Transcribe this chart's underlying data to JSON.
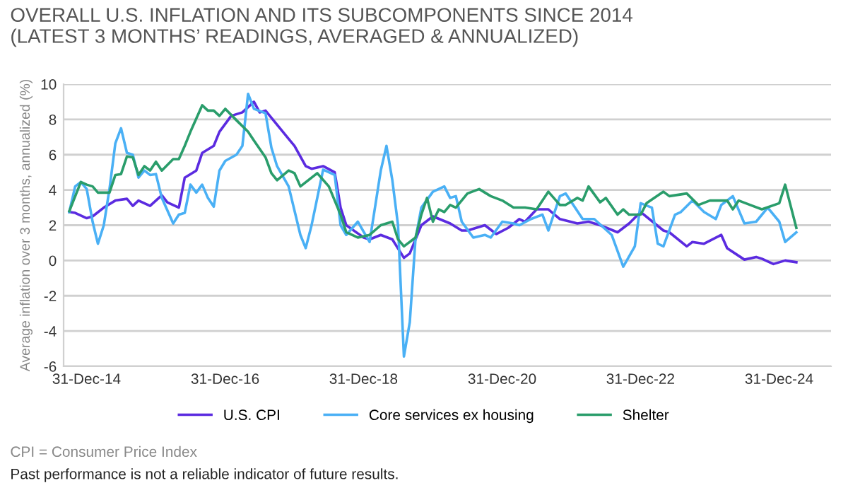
{
  "chart_data": {
    "type": "line",
    "title": "OVERALL U.S. INFLATION AND ITS SUBCOMPONENTS SINCE 2014\n(LATEST 3 MONTHS’ READINGS, AVERAGED & ANNUALIZED)",
    "ylabel": "Average inflation over 3 months, annualized (%)",
    "xlim": [
      "2014-09-01",
      "2025-10-01"
    ],
    "xticks": [
      {
        "value": "2014-12-31",
        "label": "31-Dec-14"
      },
      {
        "value": "2016-12-31",
        "label": "31-Dec-16"
      },
      {
        "value": "2018-12-31",
        "label": "31-Dec-18"
      },
      {
        "value": "2020-12-31",
        "label": "31-Dec-20"
      },
      {
        "value": "2022-12-31",
        "label": "31-Dec-22"
      },
      {
        "value": "2024-12-31",
        "label": "31-Dec-24"
      }
    ],
    "ylim": [
      -6,
      10
    ],
    "yticks": [
      -6,
      -4,
      -2,
      0,
      2,
      4,
      6,
      8,
      10
    ],
    "grid": "y",
    "legend": "bottom",
    "marker": "none",
    "line_style": "solid",
    "series": [
      {
        "name": "U.S. CPI",
        "color": "#5b2be0",
        "x": [
          "2014-10",
          "2014-11",
          "2015-01",
          "2015-02",
          "2015-04",
          "2015-06",
          "2015-08",
          "2015-09",
          "2015-10",
          "2015-12",
          "2016-02",
          "2016-03",
          "2016-05",
          "2016-06",
          "2016-08",
          "2016-09",
          "2016-11",
          "2016-12",
          "2017-02",
          "2017-04",
          "2017-06",
          "2017-07",
          "2017-08",
          "2017-10",
          "2017-12",
          "2018-01",
          "2018-03",
          "2018-04",
          "2018-06",
          "2018-08",
          "2018-09",
          "2018-10",
          "2019-01",
          "2019-02",
          "2019-04",
          "2019-06",
          "2019-08",
          "2019-09",
          "2019-11",
          "2020-01",
          "2020-04",
          "2020-06",
          "2020-07",
          "2020-10",
          "2020-12",
          "2021-02",
          "2021-04",
          "2021-05",
          "2021-07",
          "2021-09",
          "2021-11",
          "2022-02",
          "2022-04",
          "2022-06",
          "2022-09",
          "2022-11",
          "2023-01",
          "2023-05",
          "2023-06",
          "2023-09",
          "2023-10",
          "2023-12",
          "2024-03",
          "2024-04",
          "2024-07",
          "2024-09",
          "2024-10",
          "2024-12",
          "2025-02",
          "2025-04"
        ],
        "values": [
          2.75,
          2.7,
          2.4,
          2.5,
          3.0,
          3.4,
          3.5,
          3.1,
          3.4,
          3.1,
          3.7,
          3.3,
          3.0,
          4.7,
          5.1,
          6.1,
          6.5,
          7.3,
          8.2,
          8.4,
          9.0,
          8.4,
          8.5,
          7.7,
          6.9,
          6.5,
          5.35,
          5.2,
          5.35,
          5.0,
          3.0,
          2.0,
          1.3,
          1.2,
          1.45,
          1.2,
          0.15,
          0.4,
          2.0,
          2.5,
          2.1,
          1.7,
          1.7,
          2.0,
          1.5,
          1.85,
          2.35,
          2.2,
          2.9,
          2.9,
          2.35,
          2.1,
          2.2,
          2.0,
          1.6,
          2.1,
          2.75,
          1.7,
          1.6,
          0.8,
          1.05,
          0.95,
          1.45,
          0.7,
          0.05,
          0.2,
          0.1,
          -0.2,
          0.0,
          -0.1
        ]
      },
      {
        "name": "Core services ex housing",
        "color": "#4ab0f5",
        "x": [
          "2014-10",
          "2014-11",
          "2014-12",
          "2015-01",
          "2015-02",
          "2015-03",
          "2015-04",
          "2015-05",
          "2015-06",
          "2015-07",
          "2015-08",
          "2015-09",
          "2015-10",
          "2015-11",
          "2015-12",
          "2016-01",
          "2016-02",
          "2016-04",
          "2016-05",
          "2016-06",
          "2016-07",
          "2016-08",
          "2016-09",
          "2016-10",
          "2016-11",
          "2016-12",
          "2017-01",
          "2017-03",
          "2017-04",
          "2017-05",
          "2017-06",
          "2017-08",
          "2017-09",
          "2017-10",
          "2017-12",
          "2018-02",
          "2018-03",
          "2018-04",
          "2018-05",
          "2018-06",
          "2018-08",
          "2018-09",
          "2018-10",
          "2018-12",
          "2019-02",
          "2019-04",
          "2019-05",
          "2019-06",
          "2019-07",
          "2019-08",
          "2019-09",
          "2019-10",
          "2019-11",
          "2020-01",
          "2020-03",
          "2020-04",
          "2020-05",
          "2020-06",
          "2020-08",
          "2020-10",
          "2020-11",
          "2021-01",
          "2021-03",
          "2021-04",
          "2021-06",
          "2021-08",
          "2021-09",
          "2021-11",
          "2021-12",
          "2022-03",
          "2022-05",
          "2022-08",
          "2022-10",
          "2022-12",
          "2023-01",
          "2023-03",
          "2023-04",
          "2023-05",
          "2023-07",
          "2023-08",
          "2023-10",
          "2023-12",
          "2024-02",
          "2024-03",
          "2024-05",
          "2024-07",
          "2024-09",
          "2024-11",
          "2025-01",
          "2025-02",
          "2025-04"
        ],
        "values": [
          2.75,
          4.2,
          4.45,
          4.05,
          2.2,
          0.95,
          2.0,
          4.05,
          6.65,
          7.5,
          6.1,
          6.0,
          4.7,
          5.1,
          4.85,
          4.9,
          3.55,
          2.1,
          2.6,
          2.7,
          4.3,
          3.85,
          4.3,
          3.55,
          3.05,
          5.1,
          5.65,
          6.0,
          6.5,
          9.45,
          8.6,
          8.35,
          6.4,
          5.35,
          4.2,
          1.45,
          0.7,
          2.0,
          3.55,
          5.15,
          4.85,
          2.0,
          1.45,
          2.2,
          1.05,
          5.1,
          6.5,
          4.55,
          2.0,
          -5.45,
          -3.5,
          1.2,
          3.0,
          3.9,
          4.2,
          3.55,
          3.65,
          2.2,
          1.3,
          1.45,
          1.3,
          2.2,
          2.1,
          2.0,
          2.35,
          2.6,
          1.7,
          3.65,
          3.8,
          2.35,
          2.35,
          1.45,
          -0.35,
          0.8,
          3.25,
          3.0,
          0.95,
          0.8,
          2.6,
          2.75,
          3.4,
          2.75,
          2.35,
          3.15,
          3.65,
          2.1,
          2.2,
          3.0,
          2.2,
          1.05,
          1.6
        ]
      },
      {
        "name": "Shelter",
        "color": "#2a9d6b",
        "x": [
          "2014-10",
          "2014-12",
          "2015-01",
          "2015-02",
          "2015-03",
          "2015-05",
          "2015-06",
          "2015-07",
          "2015-08",
          "2015-09",
          "2015-10",
          "2015-11",
          "2015-12",
          "2016-01",
          "2016-02",
          "2016-04",
          "2016-05",
          "2016-06",
          "2016-07",
          "2016-09",
          "2016-10",
          "2016-11",
          "2016-12",
          "2017-01",
          "2017-03",
          "2017-05",
          "2017-06",
          "2017-08",
          "2017-09",
          "2017-10",
          "2017-12",
          "2018-01",
          "2018-02",
          "2018-05",
          "2018-07",
          "2018-09",
          "2018-10",
          "2018-12",
          "2019-02",
          "2019-04",
          "2019-06",
          "2019-07",
          "2019-08",
          "2019-10",
          "2019-11",
          "2019-12",
          "2020-01",
          "2020-02",
          "2020-03",
          "2020-04",
          "2020-05",
          "2020-07",
          "2020-09",
          "2020-11",
          "2021-01",
          "2021-03",
          "2021-05",
          "2021-07",
          "2021-09",
          "2021-11",
          "2021-12",
          "2022-02",
          "2022-03",
          "2022-04",
          "2022-06",
          "2022-07",
          "2022-09",
          "2022-10",
          "2022-11",
          "2023-01",
          "2023-02",
          "2023-05",
          "2023-06",
          "2023-09",
          "2023-11",
          "2024-01",
          "2024-04",
          "2024-05",
          "2024-06",
          "2024-08",
          "2024-10",
          "2025-01",
          "2025-02",
          "2025-04"
        ],
        "values": [
          2.8,
          4.45,
          4.3,
          4.2,
          3.85,
          3.85,
          4.85,
          4.9,
          5.9,
          5.85,
          4.85,
          5.35,
          5.1,
          5.6,
          5.1,
          5.75,
          5.75,
          6.5,
          7.3,
          8.8,
          8.5,
          8.5,
          8.2,
          8.6,
          7.95,
          7.3,
          6.8,
          5.85,
          4.95,
          4.55,
          5.1,
          4.95,
          4.2,
          4.95,
          4.2,
          2.6,
          1.6,
          1.3,
          1.45,
          2.0,
          2.2,
          1.2,
          0.8,
          1.3,
          2.6,
          3.55,
          2.2,
          2.9,
          2.75,
          3.15,
          3.0,
          3.8,
          4.05,
          3.65,
          3.4,
          3.0,
          3.0,
          2.9,
          3.9,
          3.15,
          3.15,
          3.55,
          3.4,
          4.2,
          3.3,
          3.55,
          2.6,
          2.9,
          2.6,
          2.6,
          3.25,
          3.9,
          3.65,
          3.8,
          3.15,
          3.4,
          3.4,
          2.9,
          3.4,
          3.15,
          2.9,
          3.25,
          4.3,
          1.85
        ]
      }
    ],
    "annotations": [
      "CPI = Consumer Price Index",
      "Past performance is not a reliable indicator of future results."
    ]
  }
}
